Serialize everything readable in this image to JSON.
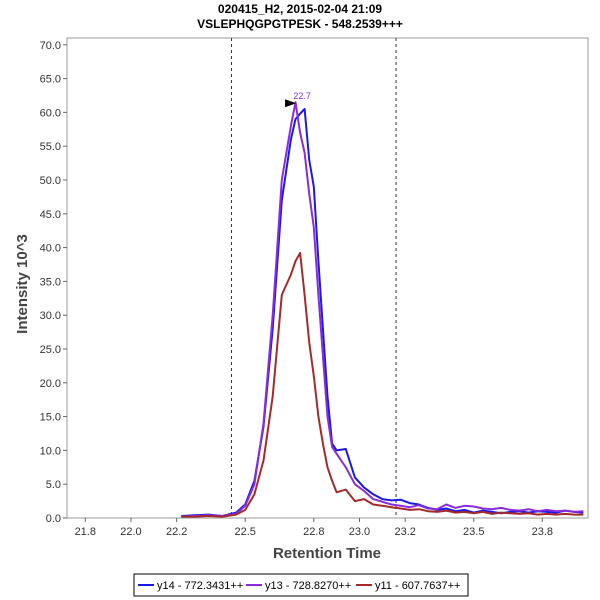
{
  "chart_data": {
    "type": "line",
    "title": "020415_H2, 2015-02-04 21:09",
    "subtitle": "VSLEPHQGPGTPESK - 548.2539+++",
    "xlabel": "Retention Time",
    "ylabel": "Intensity 10^3",
    "xlim": [
      21.72,
      24.0
    ],
    "ylim": [
      0,
      71
    ],
    "x_ticks": [
      21.8,
      22.0,
      22.2,
      22.5,
      22.8,
      23.0,
      23.2,
      23.5,
      23.8
    ],
    "x_tick_labels": [
      "21.8",
      "22.0",
      "22.2",
      "22.5",
      "22.8",
      "23.0",
      "23.2",
      "23.5",
      "23.8"
    ],
    "y_ticks": [
      0,
      5,
      10,
      15,
      20,
      25,
      30,
      35,
      40,
      45,
      50,
      55,
      60,
      65,
      70
    ],
    "y_tick_labels": [
      "0.0",
      "5.0",
      "10.0",
      "15.0",
      "20.0",
      "25.0",
      "30.0",
      "35.0",
      "40.0",
      "45.0",
      "50.0",
      "55.0",
      "60.0",
      "65.0",
      "70.0"
    ],
    "grid": false,
    "legend_position": "bottom",
    "boundaries": [
      22.44,
      23.16
    ],
    "peak_annotation": {
      "label": "22.7",
      "x": 22.74,
      "y": 61.5
    },
    "series": [
      {
        "name": "y14 - 772.3431++",
        "color": "#1a1ae6",
        "x": [
          22.22,
          22.28,
          22.34,
          22.4,
          22.46,
          22.5,
          22.54,
          22.58,
          22.62,
          22.66,
          22.7,
          22.72,
          22.74,
          22.76,
          22.78,
          22.8,
          22.82,
          22.84,
          22.86,
          22.88,
          22.9,
          22.94,
          22.98,
          23.02,
          23.06,
          23.1,
          23.14,
          23.18,
          23.22,
          23.26,
          23.3,
          23.34,
          23.38,
          23.42,
          23.46,
          23.5,
          23.54,
          23.58,
          23.62,
          23.66,
          23.7,
          23.74,
          23.78,
          23.82,
          23.86,
          23.9,
          23.94,
          23.98
        ],
        "y": [
          0.3,
          0.4,
          0.5,
          0.3,
          0.8,
          2.0,
          5.5,
          13.5,
          28.0,
          47.0,
          56.0,
          59.0,
          59.8,
          60.5,
          53.0,
          49.0,
          38.0,
          28.0,
          18.0,
          11.0,
          10.0,
          10.2,
          6.0,
          4.5,
          3.5,
          2.8,
          2.6,
          2.7,
          2.2,
          2.0,
          1.5,
          1.2,
          1.4,
          1.0,
          1.2,
          0.8,
          1.1,
          0.9,
          0.7,
          0.9,
          1.0,
          0.8,
          1.0,
          0.9,
          0.8,
          1.1,
          0.9,
          0.8
        ]
      },
      {
        "name": "y13 - 728.8270++",
        "color": "#8a2be2",
        "x": [
          22.22,
          22.28,
          22.34,
          22.4,
          22.46,
          22.5,
          22.54,
          22.58,
          22.62,
          22.66,
          22.7,
          22.72,
          22.74,
          22.76,
          22.78,
          22.8,
          22.82,
          22.84,
          22.86,
          22.88,
          22.9,
          22.94,
          22.98,
          23.02,
          23.06,
          23.1,
          23.14,
          23.18,
          23.22,
          23.26,
          23.3,
          23.34,
          23.38,
          23.42,
          23.46,
          23.5,
          23.54,
          23.58,
          23.62,
          23.66,
          23.7,
          23.74,
          23.78,
          23.82,
          23.86,
          23.9,
          23.94,
          23.98
        ],
        "y": [
          0.2,
          0.3,
          0.4,
          0.3,
          0.6,
          1.8,
          5.0,
          14.0,
          30.0,
          50.0,
          58.0,
          61.5,
          57.0,
          54.0,
          48.0,
          43.0,
          33.0,
          24.0,
          15.0,
          10.5,
          9.5,
          7.5,
          5.0,
          4.0,
          2.8,
          2.4,
          2.0,
          1.8,
          1.6,
          1.9,
          1.4,
          1.3,
          2.0,
          1.5,
          1.8,
          1.7,
          1.4,
          1.3,
          1.5,
          1.2,
          1.1,
          1.3,
          1.0,
          1.2,
          1.0,
          1.1,
          0.9,
          1.0
        ]
      },
      {
        "name": "y11 - 607.7637++",
        "color": "#a52a2a",
        "x": [
          22.22,
          22.28,
          22.34,
          22.4,
          22.46,
          22.5,
          22.54,
          22.58,
          22.62,
          22.66,
          22.7,
          22.72,
          22.74,
          22.76,
          22.78,
          22.8,
          22.82,
          22.84,
          22.86,
          22.88,
          22.9,
          22.94,
          22.98,
          23.02,
          23.06,
          23.1,
          23.14,
          23.18,
          23.22,
          23.26,
          23.3,
          23.34,
          23.38,
          23.42,
          23.46,
          23.5,
          23.54,
          23.58,
          23.62,
          23.66,
          23.7,
          23.74,
          23.78,
          23.82,
          23.86,
          23.9,
          23.94,
          23.98
        ],
        "y": [
          0.2,
          0.2,
          0.3,
          0.2,
          0.5,
          1.2,
          3.5,
          8.5,
          18.0,
          33.0,
          36.0,
          38.0,
          39.2,
          33.0,
          26.0,
          21.0,
          15.0,
          11.0,
          7.5,
          5.5,
          3.8,
          4.2,
          2.5,
          2.8,
          2.0,
          1.8,
          1.6,
          1.4,
          1.2,
          1.3,
          1.0,
          0.9,
          1.1,
          0.8,
          0.9,
          0.7,
          0.9,
          0.6,
          0.8,
          0.7,
          0.6,
          0.7,
          0.5,
          0.6,
          0.5,
          0.6,
          0.5,
          0.5
        ]
      }
    ]
  }
}
